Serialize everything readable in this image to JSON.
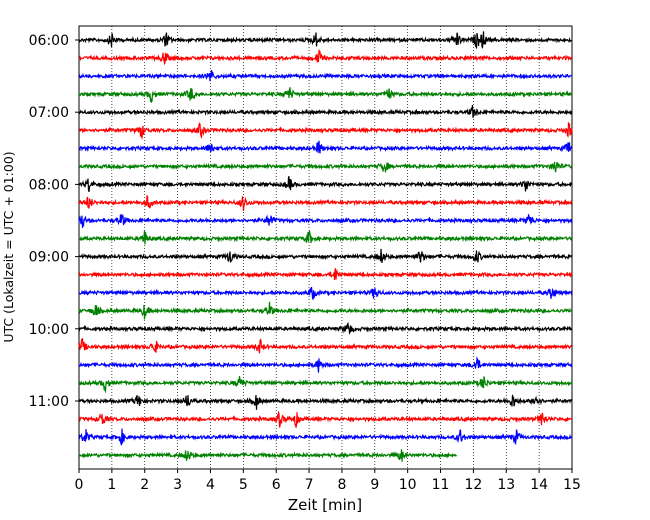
{
  "chart_data": {
    "type": "line",
    "title": "",
    "xlabel": "Zeit  [min]",
    "ylabel": "UTC (Lokalzeit = UTC + 01:00)",
    "xlim": [
      0,
      15
    ],
    "x_ticks": [
      "0",
      "1",
      "2",
      "3",
      "4",
      "5",
      "6",
      "7",
      "8",
      "9",
      "10",
      "11",
      "12",
      "13",
      "14",
      "15"
    ],
    "grid": "vertical dotted at each minute",
    "trace_interval_minutes": 15,
    "y_tick_labels": [
      "06:00",
      "07:00",
      "08:00",
      "09:00",
      "10:00",
      "11:00"
    ],
    "traces": [
      {
        "start": "06:00",
        "color": "#000000",
        "end_min": 15,
        "events_min": [
          1.0,
          2.65,
          7.2,
          11.5,
          12.1,
          12.3
        ]
      },
      {
        "start": "06:15",
        "color": "#ff0000",
        "end_min": 15,
        "events_min": [
          2.6,
          7.3
        ]
      },
      {
        "start": "06:30",
        "color": "#0000ff",
        "end_min": 15,
        "events_min": [
          4.0
        ]
      },
      {
        "start": "06:45",
        "color": "#008000",
        "end_min": 15,
        "events_min": [
          2.2,
          3.4,
          6.4,
          9.4
        ]
      },
      {
        "start": "07:00",
        "color": "#000000",
        "end_min": 15,
        "events_min": [
          12.0
        ]
      },
      {
        "start": "07:15",
        "color": "#ff0000",
        "end_min": 15,
        "events_min": [
          1.9,
          3.7,
          14.9
        ]
      },
      {
        "start": "07:30",
        "color": "#0000ff",
        "end_min": 15,
        "events_min": [
          4.0,
          7.3,
          14.9
        ]
      },
      {
        "start": "07:45",
        "color": "#008000",
        "end_min": 15,
        "events_min": [
          9.3,
          14.5
        ]
      },
      {
        "start": "08:00",
        "color": "#000000",
        "end_min": 15,
        "events_min": [
          0.3,
          6.4,
          13.6
        ]
      },
      {
        "start": "08:15",
        "color": "#ff0000",
        "end_min": 15,
        "events_min": [
          0.3,
          2.1,
          5.0
        ]
      },
      {
        "start": "08:30",
        "color": "#0000ff",
        "end_min": 15,
        "events_min": [
          0.1,
          1.3,
          5.8,
          13.7
        ]
      },
      {
        "start": "08:45",
        "color": "#008000",
        "end_min": 15,
        "events_min": [
          2.0,
          7.0
        ]
      },
      {
        "start": "09:00",
        "color": "#000000",
        "end_min": 15,
        "events_min": [
          4.6,
          9.2,
          10.4,
          12.1
        ]
      },
      {
        "start": "09:15",
        "color": "#ff0000",
        "end_min": 15,
        "events_min": [
          7.8
        ]
      },
      {
        "start": "09:30",
        "color": "#0000ff",
        "end_min": 15,
        "events_min": [
          7.1,
          9.0,
          14.4
        ]
      },
      {
        "start": "09:45",
        "color": "#008000",
        "end_min": 15,
        "events_min": [
          0.5,
          2.0,
          5.8
        ]
      },
      {
        "start": "10:00",
        "color": "#000000",
        "end_min": 15,
        "events_min": [
          8.2
        ]
      },
      {
        "start": "10:15",
        "color": "#ff0000",
        "end_min": 15,
        "events_min": [
          0.1,
          2.3,
          5.5
        ]
      },
      {
        "start": "10:30",
        "color": "#0000ff",
        "end_min": 15,
        "events_min": [
          7.3,
          12.1
        ]
      },
      {
        "start": "10:45",
        "color": "#008000",
        "end_min": 15,
        "events_min": [
          0.8,
          4.9,
          12.3
        ]
      },
      {
        "start": "11:00",
        "color": "#000000",
        "end_min": 15,
        "events_min": [
          1.8,
          3.3,
          5.4,
          13.2,
          13.9
        ]
      },
      {
        "start": "11:15",
        "color": "#ff0000",
        "end_min": 15,
        "events_min": [
          0.7,
          6.1,
          6.6,
          14.1
        ]
      },
      {
        "start": "11:30",
        "color": "#0000ff",
        "end_min": 15,
        "events_min": [
          0.2,
          1.3,
          11.6,
          13.3
        ]
      },
      {
        "start": "11:45",
        "color": "#008000",
        "end_min": 11.5,
        "events_min": [
          3.3,
          9.8
        ]
      }
    ]
  }
}
